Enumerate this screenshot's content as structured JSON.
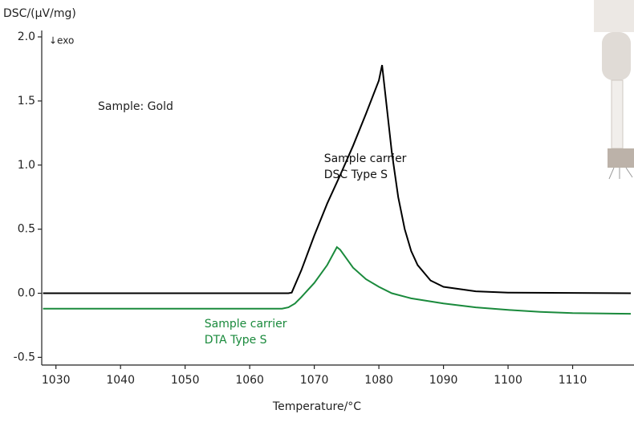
{
  "chart_data": {
    "type": "line",
    "y_label": "DSC/(µV/mg)",
    "x_label": "Temperature/°C",
    "direction_note": "↓exo",
    "sample_note": "Sample: Gold",
    "annotations": [
      {
        "lines": [
          "Sample carrier",
          "DSC Type S"
        ],
        "color": "#111111",
        "at": [
          1071.5,
          1.05
        ]
      },
      {
        "lines": [
          "Sample carrier",
          "DTA Type S"
        ],
        "color": "#1a8a3c",
        "at": [
          1053,
          -0.24
        ]
      }
    ],
    "series": [
      {
        "name": "Sample carrier DSC Type S",
        "color": "#000000",
        "x": [
          1028,
          1066,
          1066.5,
          1068,
          1070,
          1072,
          1074,
          1076,
          1078,
          1080,
          1080.5,
          1081,
          1082,
          1083,
          1084,
          1085,
          1086,
          1088,
          1090,
          1095,
          1100,
          1119
        ],
        "values": [
          0,
          0,
          0.005,
          0.18,
          0.45,
          0.7,
          0.92,
          1.15,
          1.4,
          1.66,
          1.78,
          1.55,
          1.1,
          0.75,
          0.5,
          0.33,
          0.22,
          0.1,
          0.05,
          0.015,
          0.005,
          0
        ]
      },
      {
        "name": "Sample carrier DTA Type S",
        "color": "#1a8a3c",
        "x": [
          1028,
          1065,
          1066,
          1067,
          1068,
          1070,
          1072,
          1073.5,
          1074,
          1075,
          1076,
          1078,
          1080,
          1082,
          1085,
          1090,
          1095,
          1100,
          1105,
          1110,
          1119
        ],
        "values": [
          -0.12,
          -0.12,
          -0.11,
          -0.08,
          -0.03,
          0.08,
          0.22,
          0.36,
          0.34,
          0.27,
          0.2,
          0.11,
          0.05,
          0.0,
          -0.04,
          -0.08,
          -0.11,
          -0.13,
          -0.145,
          -0.155,
          -0.16
        ]
      }
    ],
    "xlim": [
      1027.8,
      1119.5
    ],
    "xticks": [
      1030,
      1040,
      1050,
      1060,
      1070,
      1080,
      1090,
      1100,
      1110
    ],
    "ylim": [
      -0.56,
      2.05
    ],
    "yticks": [
      {
        "value": 2,
        "label": "2.0"
      },
      1.5,
      {
        "value": 1,
        "label": "1.0"
      },
      0.5,
      {
        "value": 0,
        "label": "0.0"
      },
      -0.5
    ]
  }
}
